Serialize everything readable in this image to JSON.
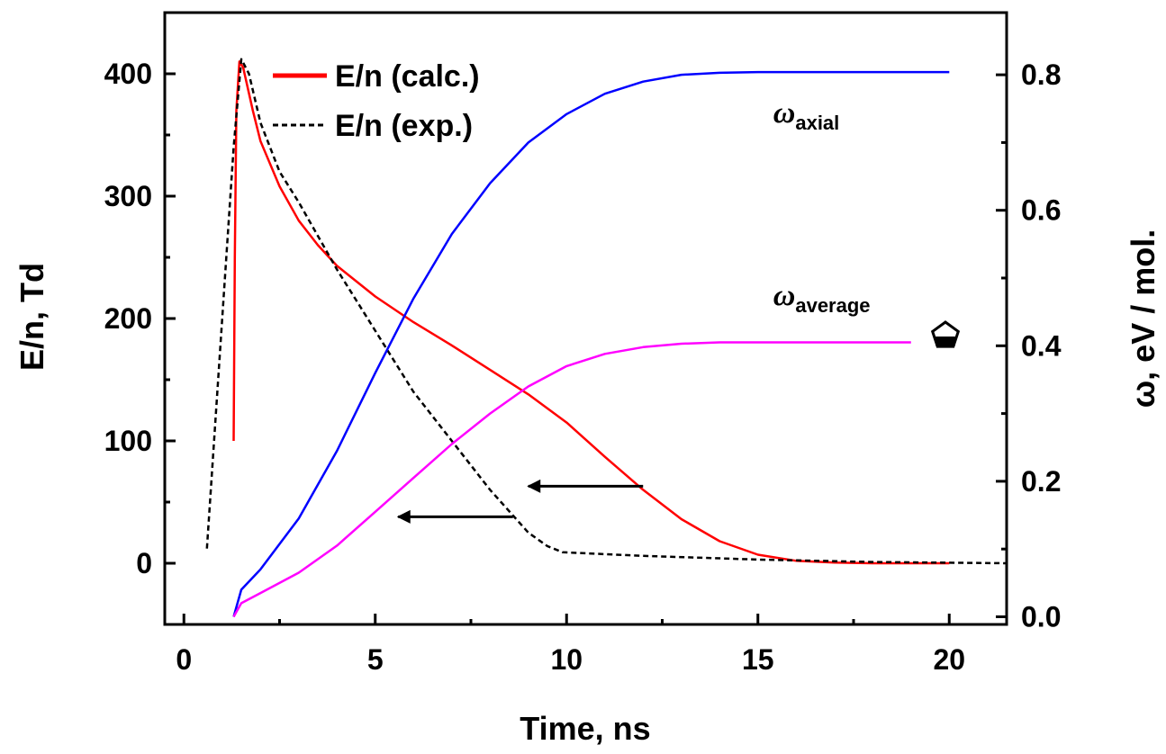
{
  "chart_data": {
    "type": "line",
    "xlabel": "Time, ns",
    "ylabel_left": "E/n, Td",
    "ylabel_right": "ω, eV / mol.",
    "xlim": [
      -0.5,
      21.5
    ],
    "ylim_left": [
      -50,
      450
    ],
    "ylim_right": [
      -0.0113,
      0.8918
    ],
    "x_ticks": [
      0,
      5,
      10,
      15,
      20
    ],
    "y_ticks_left": [
      0,
      100,
      200,
      300,
      400
    ],
    "y_ticks_right": [
      0.0,
      0.2,
      0.4,
      0.6,
      0.8
    ],
    "y_tick_labels_right": [
      "0.0",
      "0.2",
      "0.4",
      "0.6",
      "0.8"
    ],
    "grid": false,
    "legend_position": "top-left",
    "legend": [
      {
        "label": "E/n (calc.)",
        "series": "En_calc"
      },
      {
        "label": "E/n (exp.)",
        "series": "En_exp"
      }
    ],
    "annotations": [
      {
        "base": "ω",
        "sub": "axial",
        "x": 15.4,
        "y_axis": "right",
        "y": 0.73
      },
      {
        "base": "ω",
        "sub": "average",
        "x": 15.4,
        "y_axis": "right",
        "y": 0.46
      }
    ],
    "arrows": [
      {
        "from_x": 12.0,
        "to_x": 9.0,
        "y_axis": "left",
        "y": 63
      },
      {
        "from_x": 8.6,
        "to_x": 5.6,
        "y_axis": "left",
        "y": 38
      }
    ],
    "marker": {
      "shape": "pentagon",
      "x": 19.9,
      "y_axis": "right",
      "y": 0.415
    },
    "series": [
      {
        "id": "En_calc",
        "name": "E/n (calc.)",
        "axis": "left",
        "color": "#ff0000",
        "style": "solid",
        "points": [
          [
            1.3,
            100
          ],
          [
            1.33,
            250
          ],
          [
            1.37,
            370
          ],
          [
            1.45,
            410
          ],
          [
            1.55,
            405
          ],
          [
            1.8,
            370
          ],
          [
            2.0,
            345
          ],
          [
            2.5,
            308
          ],
          [
            3.0,
            280
          ],
          [
            3.5,
            260
          ],
          [
            4.0,
            243
          ],
          [
            5.0,
            218
          ],
          [
            6.0,
            197
          ],
          [
            7.0,
            178
          ],
          [
            8.0,
            158
          ],
          [
            9.0,
            138
          ],
          [
            10.0,
            115
          ],
          [
            11.0,
            87
          ],
          [
            12.0,
            60
          ],
          [
            13.0,
            36
          ],
          [
            14.0,
            18
          ],
          [
            15.0,
            7
          ],
          [
            16.0,
            2
          ],
          [
            17.0,
            0.5
          ],
          [
            18.0,
            0
          ],
          [
            19.0,
            0
          ],
          [
            20.0,
            0
          ]
        ]
      },
      {
        "id": "En_exp",
        "name": "E/n (exp.)",
        "axis": "left",
        "color": "#000000",
        "style": "dashed",
        "points": [
          [
            0.6,
            12
          ],
          [
            1.0,
            200
          ],
          [
            1.3,
            340
          ],
          [
            1.5,
            412
          ],
          [
            1.7,
            400
          ],
          [
            2.0,
            360
          ],
          [
            2.5,
            320
          ],
          [
            3.0,
            295
          ],
          [
            4.0,
            240
          ],
          [
            5.0,
            190
          ],
          [
            6.0,
            140
          ],
          [
            7.0,
            100
          ],
          [
            8.0,
            60
          ],
          [
            9.0,
            25
          ],
          [
            9.5,
            14
          ],
          [
            9.9,
            9
          ],
          [
            12.0,
            6
          ],
          [
            15.0,
            3
          ],
          [
            18.0,
            1
          ],
          [
            21.5,
            0
          ]
        ]
      },
      {
        "id": "omega_axial",
        "name": "ω axial",
        "axis": "right",
        "color": "#0000ff",
        "style": "solid",
        "points": [
          [
            1.3,
            0.0
          ],
          [
            1.5,
            0.04
          ],
          [
            2.0,
            0.07
          ],
          [
            3.0,
            0.145
          ],
          [
            4.0,
            0.245
          ],
          [
            5.0,
            0.36
          ],
          [
            6.0,
            0.47
          ],
          [
            7.0,
            0.565
          ],
          [
            8.0,
            0.64
          ],
          [
            9.0,
            0.7
          ],
          [
            10.0,
            0.742
          ],
          [
            11.0,
            0.772
          ],
          [
            12.0,
            0.79
          ],
          [
            13.0,
            0.8
          ],
          [
            14.0,
            0.803
          ],
          [
            15.0,
            0.804
          ],
          [
            20.0,
            0.804
          ]
        ]
      },
      {
        "id": "omega_average",
        "name": "ω average",
        "axis": "right",
        "color": "#ff00ff",
        "style": "solid",
        "points": [
          [
            1.3,
            0.0
          ],
          [
            1.5,
            0.02
          ],
          [
            2.0,
            0.035
          ],
          [
            3.0,
            0.065
          ],
          [
            4.0,
            0.105
          ],
          [
            5.0,
            0.155
          ],
          [
            6.0,
            0.205
          ],
          [
            7.0,
            0.255
          ],
          [
            8.0,
            0.3
          ],
          [
            9.0,
            0.34
          ],
          [
            10.0,
            0.37
          ],
          [
            11.0,
            0.388
          ],
          [
            12.0,
            0.398
          ],
          [
            13.0,
            0.403
          ],
          [
            14.0,
            0.405
          ],
          [
            15.0,
            0.405
          ],
          [
            19.0,
            0.405
          ]
        ]
      }
    ]
  }
}
